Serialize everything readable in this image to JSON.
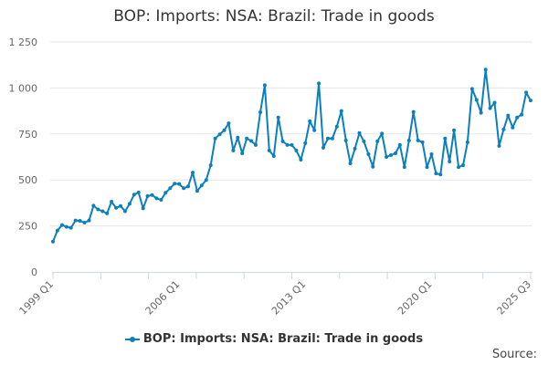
{
  "chart_data": {
    "type": "line",
    "title": "BOP: Imports: NSA: Brazil: Trade in goods",
    "xlabel": "",
    "ylabel": "",
    "x_tick_labels": [
      "1999 Q1",
      "2006 Q1",
      "2013 Q1",
      "2020 Q1",
      "2025 Q3"
    ],
    "y_tick_labels": [
      "0",
      "250",
      "500",
      "750",
      "1 000",
      "1 250"
    ],
    "y_ticks": [
      0,
      250,
      500,
      750,
      1000,
      1250
    ],
    "ylim": [
      0,
      1250
    ],
    "grid": "horizontal",
    "legend_position": "bottom",
    "color": "#0c7fbd",
    "series": [
      {
        "name": "BOP: Imports: NSA: Brazil: Trade in goods",
        "start_period": "1999 Q1",
        "end_period": "2025 Q3",
        "values": [
          165,
          225,
          255,
          245,
          240,
          280,
          278,
          268,
          280,
          360,
          340,
          330,
          318,
          382,
          348,
          358,
          330,
          370,
          420,
          432,
          345,
          412,
          418,
          400,
          392,
          430,
          455,
          480,
          478,
          455,
          465,
          540,
          440,
          470,
          500,
          580,
          725,
          748,
          770,
          808,
          660,
          730,
          645,
          725,
          712,
          690,
          868,
          1015,
          660,
          630,
          840,
          710,
          690,
          690,
          660,
          610,
          700,
          820,
          770,
          1025,
          675,
          725,
          725,
          790,
          875,
          715,
          590,
          670,
          755,
          710,
          640,
          572,
          710,
          752,
          625,
          635,
          645,
          690,
          570,
          715,
          870,
          715,
          705,
          570,
          640,
          535,
          530,
          725,
          600,
          770,
          570,
          580,
          705,
          995,
          935,
          865,
          1100,
          890,
          920,
          685,
          775,
          850,
          785,
          840,
          855,
          975,
          932
        ]
      }
    ]
  },
  "legend": {
    "label": "BOP: Imports: NSA: Brazil: Trade in goods"
  },
  "footer": {
    "source_label": "Source:"
  }
}
